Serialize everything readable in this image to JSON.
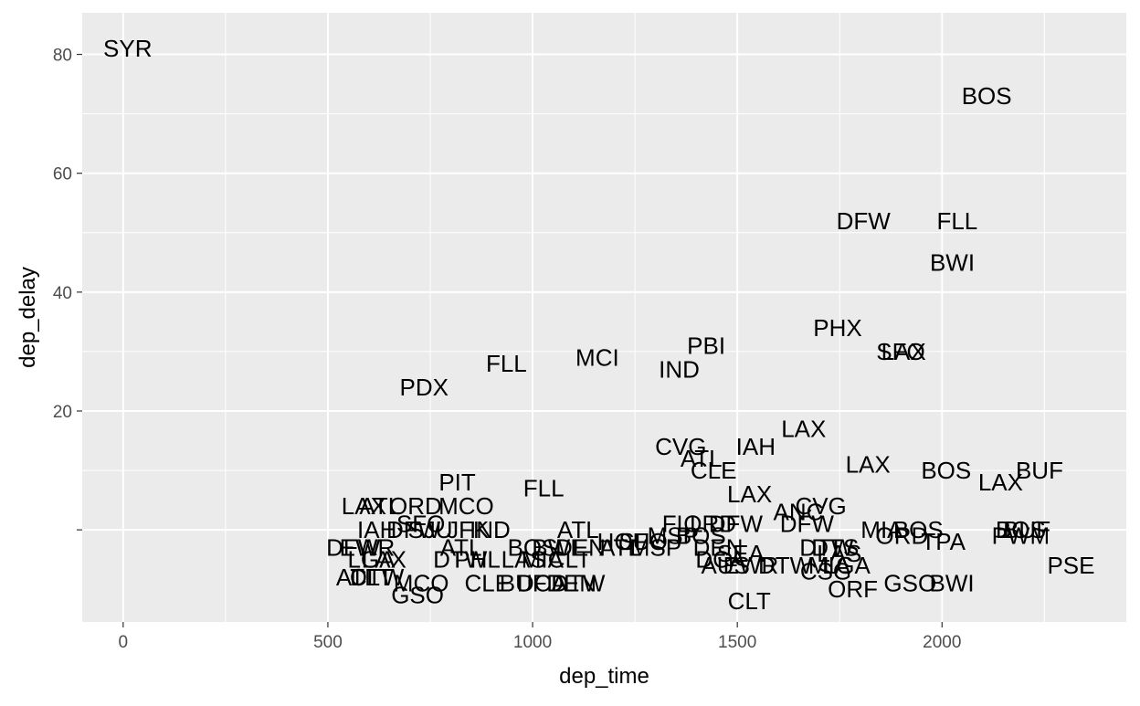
{
  "chart_data": {
    "type": "scatter",
    "mark": "text",
    "title": "",
    "xlabel": "dep_time",
    "ylabel": "dep_delay",
    "xlim": [
      -100,
      2450
    ],
    "ylim": [
      -15.5,
      87
    ],
    "xticks": [
      0,
      500,
      1000,
      1500,
      2000
    ],
    "yticks": [
      20,
      40,
      60,
      80
    ],
    "xtick_labels": [
      "0",
      "500",
      "1000",
      "1500",
      "2000"
    ],
    "ytick_labels": [
      "20",
      "40",
      "60",
      "80"
    ],
    "grid": true,
    "legend": "none",
    "colors": {
      "panel": "#ebebeb",
      "grid": "#ffffff",
      "text": "#000000",
      "tick": "#4d4d4d"
    },
    "points": [
      {
        "x": 11,
        "y": 81,
        "label": "SYR"
      },
      {
        "x": 2109,
        "y": 73,
        "label": "BOS"
      },
      {
        "x": 1808,
        "y": 52,
        "label": "DFW"
      },
      {
        "x": 2037,
        "y": 52,
        "label": "FLL"
      },
      {
        "x": 2025,
        "y": 45,
        "label": "BWI"
      },
      {
        "x": 1745,
        "y": 34,
        "label": "PHX"
      },
      {
        "x": 1906,
        "y": 30,
        "label": "LAX"
      },
      {
        "x": 1899,
        "y": 30,
        "label": "SFO"
      },
      {
        "x": 1424,
        "y": 31,
        "label": "PBI"
      },
      {
        "x": 1158,
        "y": 29,
        "label": "MCI"
      },
      {
        "x": 1358,
        "y": 27,
        "label": "IND"
      },
      {
        "x": 936,
        "y": 28,
        "label": "FLL"
      },
      {
        "x": 735,
        "y": 24,
        "label": "PDX"
      },
      {
        "x": 1662,
        "y": 17,
        "label": "LAX"
      },
      {
        "x": 1545,
        "y": 14,
        "label": "IAH"
      },
      {
        "x": 1362,
        "y": 14,
        "label": "CVG"
      },
      {
        "x": 1412,
        "y": 12,
        "label": "ATL"
      },
      {
        "x": 1442,
        "y": 10,
        "label": "CLE"
      },
      {
        "x": 1819,
        "y": 11,
        "label": "LAX"
      },
      {
        "x": 2010,
        "y": 10,
        "label": "BOS"
      },
      {
        "x": 2238,
        "y": 10,
        "label": "BUF"
      },
      {
        "x": 2143,
        "y": 8,
        "label": "LAX"
      },
      {
        "x": 1530,
        "y": 6,
        "label": "LAX"
      },
      {
        "x": 816,
        "y": 8,
        "label": "PIT"
      },
      {
        "x": 1027,
        "y": 7,
        "label": "FLL"
      },
      {
        "x": 588,
        "y": 4,
        "label": "LAX"
      },
      {
        "x": 628,
        "y": 4,
        "label": "ATL"
      },
      {
        "x": 714,
        "y": 4,
        "label": "ORD"
      },
      {
        "x": 838,
        "y": 4,
        "label": "MCO"
      },
      {
        "x": 1649,
        "y": 3,
        "label": "ANC"
      },
      {
        "x": 1704,
        "y": 4,
        "label": "CVG"
      },
      {
        "x": 1670,
        "y": 1,
        "label": "DFW"
      },
      {
        "x": 1366,
        "y": 1,
        "label": "FLL"
      },
      {
        "x": 1496,
        "y": 1,
        "label": "DFW"
      },
      {
        "x": 1433,
        "y": 1,
        "label": "ORD"
      },
      {
        "x": 620,
        "y": 0,
        "label": "IAH"
      },
      {
        "x": 727,
        "y": 1,
        "label": "SFO"
      },
      {
        "x": 709,
        "y": 0,
        "label": "DFW"
      },
      {
        "x": 750,
        "y": 0,
        "label": "SJU"
      },
      {
        "x": 842,
        "y": 0,
        "label": "JFK"
      },
      {
        "x": 896,
        "y": 0,
        "label": "IND"
      },
      {
        "x": 1111,
        "y": 0,
        "label": "ATL"
      },
      {
        "x": 1853,
        "y": 0,
        "label": "MIA"
      },
      {
        "x": 1942,
        "y": 0,
        "label": "BOS"
      },
      {
        "x": 1902,
        "y": -1,
        "label": "ORD"
      },
      {
        "x": 2003,
        "y": -2,
        "label": "TPA"
      },
      {
        "x": 2192,
        "y": 0,
        "label": "BOS"
      },
      {
        "x": 2207,
        "y": 0,
        "label": "BUF"
      },
      {
        "x": 2192,
        "y": -1,
        "label": "PWM"
      },
      {
        "x": 2315,
        "y": -6,
        "label": "PSE"
      },
      {
        "x": 1222,
        "y": -2,
        "label": "HOU"
      },
      {
        "x": 1270,
        "y": -2,
        "label": "SFO"
      },
      {
        "x": 1343,
        "y": -1,
        "label": "MSP"
      },
      {
        "x": 1411,
        "y": -1,
        "label": "BOS"
      },
      {
        "x": 1453,
        "y": -3,
        "label": "DEN"
      },
      {
        "x": 562,
        "y": -3,
        "label": "DFW"
      },
      {
        "x": 596,
        "y": -3,
        "label": "EWR"
      },
      {
        "x": 825,
        "y": -3,
        "label": "ATL"
      },
      {
        "x": 1000,
        "y": -3,
        "label": "BOS"
      },
      {
        "x": 1053,
        "y": -3,
        "label": "BWI"
      },
      {
        "x": 1117,
        "y": -3,
        "label": "DEN"
      },
      {
        "x": 1214,
        "y": -3,
        "label": "ATL"
      },
      {
        "x": 1301,
        "y": -3,
        "label": "MSP"
      },
      {
        "x": 1718,
        "y": -3,
        "label": "DTW"
      },
      {
        "x": 1739,
        "y": -3,
        "label": "DTS"
      },
      {
        "x": 1749,
        "y": -4,
        "label": "LAS"
      },
      {
        "x": 1508,
        "y": -4,
        "label": "SEA"
      },
      {
        "x": 606,
        "y": -5,
        "label": "LGA"
      },
      {
        "x": 637,
        "y": -5,
        "label": "LAX"
      },
      {
        "x": 823,
        "y": -5,
        "label": "DTW"
      },
      {
        "x": 865,
        "y": -5,
        "label": "PHL"
      },
      {
        "x": 978,
        "y": -5,
        "label": "LAS"
      },
      {
        "x": 1024,
        "y": -5,
        "label": "MIA"
      },
      {
        "x": 1090,
        "y": -5,
        "label": "CLT"
      },
      {
        "x": 1459,
        "y": -5,
        "label": "DCA"
      },
      {
        "x": 1471,
        "y": -6,
        "label": "AUS"
      },
      {
        "x": 1533,
        "y": -6,
        "label": "EWR"
      },
      {
        "x": 1617,
        "y": -6,
        "label": "DTW"
      },
      {
        "x": 1725,
        "y": -6,
        "label": "MIA"
      },
      {
        "x": 1767,
        "y": -6,
        "label": "LGA"
      },
      {
        "x": 1716,
        "y": -7,
        "label": "CSG"
      },
      {
        "x": 571,
        "y": -8,
        "label": "ATL"
      },
      {
        "x": 606,
        "y": -8,
        "label": "CLT"
      },
      {
        "x": 620,
        "y": -8,
        "label": "DTW"
      },
      {
        "x": 728,
        "y": -9,
        "label": "MCO"
      },
      {
        "x": 890,
        "y": -9,
        "label": "CLE"
      },
      {
        "x": 977,
        "y": -9,
        "label": "BUF"
      },
      {
        "x": 1023,
        "y": -9,
        "label": "DCA"
      },
      {
        "x": 1095,
        "y": -9,
        "label": "DEN"
      },
      {
        "x": 1111,
        "y": -9,
        "label": "DTW"
      },
      {
        "x": 1782,
        "y": -10,
        "label": "ORF"
      },
      {
        "x": 1922,
        "y": -9,
        "label": "GSO"
      },
      {
        "x": 2024,
        "y": -9,
        "label": "BWI"
      },
      {
        "x": 719,
        "y": -11,
        "label": "GSO"
      },
      {
        "x": 1529,
        "y": -12,
        "label": "CLT"
      }
    ]
  }
}
